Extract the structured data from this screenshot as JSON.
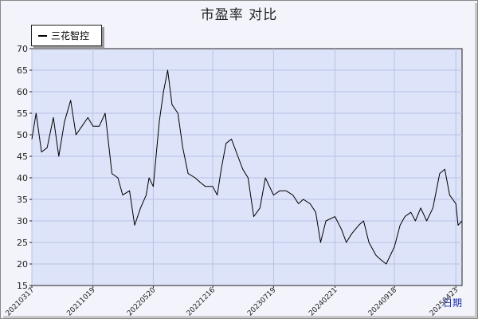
{
  "title": "市盈率  对比",
  "chart_data": {
    "type": "line",
    "title": "市盈率  对比",
    "xlabel": "日期",
    "ylabel": "",
    "ylim": [
      15,
      70
    ],
    "yticks": [
      15,
      20,
      25,
      30,
      35,
      40,
      45,
      50,
      55,
      60,
      65,
      70
    ],
    "xticks": [
      "20210317",
      "20211019",
      "20220520",
      "20221216",
      "20230719",
      "20240221",
      "20240918",
      "20250423"
    ],
    "legend": "top-left",
    "grid": true,
    "series": [
      {
        "name": "三花智控",
        "color": "#000000",
        "x": [
          "20210317",
          "20210401",
          "20210420",
          "20210510",
          "20210601",
          "20210620",
          "20210710",
          "20210801",
          "20210820",
          "20210910",
          "20211001",
          "20211019",
          "20211110",
          "20211201",
          "20211225",
          "20220115",
          "20220201",
          "20220225",
          "20220315",
          "20220405",
          "20220425",
          "20220505",
          "20220520",
          "20220610",
          "20220625",
          "20220710",
          "20220725",
          "20220815",
          "20220901",
          "20220920",
          "20221015",
          "20221101",
          "20221120",
          "20221216",
          "20230101",
          "20230115",
          "20230201",
          "20230220",
          "20230315",
          "20230401",
          "20230420",
          "20230510",
          "20230601",
          "20230620",
          "20230719",
          "20230810",
          "20230901",
          "20230925",
          "20231015",
          "20231101",
          "20231125",
          "20231215",
          "20240101",
          "20240120",
          "20240221",
          "20240315",
          "20240401",
          "20240420",
          "20240515",
          "20240601",
          "20240620",
          "20240715",
          "20240801",
          "20240820",
          "20240918",
          "20241008",
          "20241025",
          "20241115",
          "20241201",
          "20241220",
          "20250110",
          "20250201",
          "20250225",
          "20250315",
          "20250401",
          "20250423",
          "20250501",
          "20250515"
        ],
        "y": [
          49,
          55,
          46,
          47,
          54,
          45,
          53,
          58,
          50,
          52,
          54,
          52,
          52,
          55,
          41,
          40,
          36,
          37,
          29,
          33,
          36,
          40,
          38,
          53,
          60,
          65,
          57,
          55,
          47,
          41,
          40,
          39,
          38,
          38,
          36,
          42,
          48,
          49,
          45,
          42,
          40,
          31,
          33,
          40,
          36,
          37,
          37,
          36,
          34,
          35,
          34,
          32,
          25,
          30,
          31,
          28,
          25,
          27,
          29,
          30,
          25,
          22,
          21,
          20,
          24,
          29,
          31,
          32,
          30,
          33,
          30,
          33,
          41,
          42,
          36,
          34,
          29,
          30
        ]
      }
    ]
  }
}
